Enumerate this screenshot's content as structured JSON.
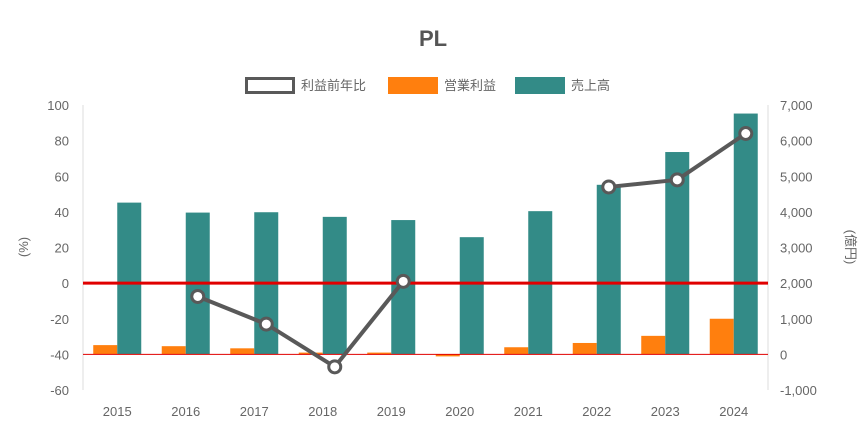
{
  "chart_data": {
    "type": "bar",
    "title": "PL",
    "categories": [
      "2015",
      "2016",
      "2017",
      "2018",
      "2019",
      "2020",
      "2021",
      "2022",
      "2023",
      "2024"
    ],
    "series": [
      {
        "name": "利益前年比",
        "kind": "line",
        "axis": "left",
        "values": [
          null,
          -7.5,
          -23,
          -47,
          1,
          null,
          null,
          54,
          58,
          84
        ],
        "color": "#595959"
      },
      {
        "name": "営業利益",
        "kind": "bar",
        "axis": "right",
        "values": [
          260,
          230,
          170,
          50,
          50,
          -30,
          200,
          320,
          520,
          1000
        ],
        "color": "#ff7f0e"
      },
      {
        "name": "売上高",
        "kind": "bar",
        "axis": "right",
        "values": [
          4260,
          3980,
          3990,
          3860,
          3770,
          3290,
          4020,
          4760,
          5680,
          6760
        ],
        "color": "#338b87"
      }
    ],
    "ylabel": "(%)",
    "y2label": "(億円)",
    "ylim": [
      -60,
      100
    ],
    "y2lim": [
      -1000,
      7000
    ],
    "yticks": [
      "100",
      "80",
      "60",
      "40",
      "20",
      "0",
      "-20",
      "-40",
      "-60"
    ],
    "y2ticks": [
      "7,000",
      "6,000",
      "5,000",
      "4,000",
      "3,000",
      "2,000",
      "1,000",
      "0",
      "-1,000"
    ],
    "zero_line_color": "#e00000",
    "legend_position": "top"
  }
}
